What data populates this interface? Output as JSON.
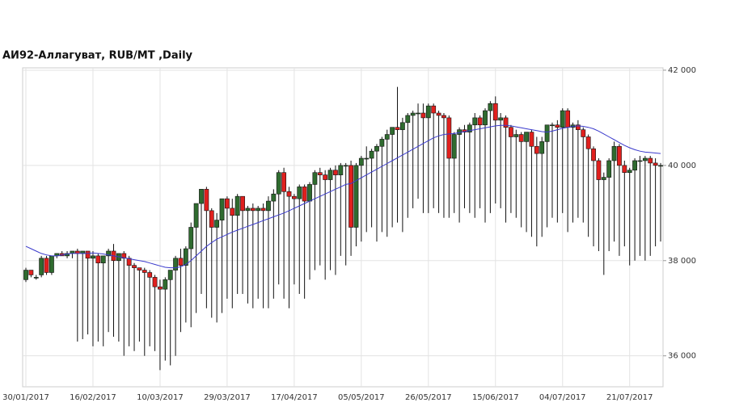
{
  "chart_data": {
    "type": "candlestick",
    "title": "АИ92-Аллагуват,  RUB/MT ,Daily",
    "categories": [
      "30/01/2017",
      null,
      null,
      null,
      null,
      null,
      null,
      null,
      null,
      null,
      null,
      null,
      null,
      "16/02/2017",
      null,
      null,
      null,
      null,
      null,
      null,
      null,
      null,
      null,
      null,
      null,
      null,
      "10/03/2017",
      null,
      null,
      null,
      null,
      null,
      null,
      null,
      null,
      null,
      null,
      null,
      null,
      "29/03/2017",
      null,
      null,
      null,
      null,
      null,
      null,
      null,
      null,
      null,
      null,
      null,
      null,
      "17/04/2017",
      null,
      null,
      null,
      null,
      null,
      null,
      null,
      null,
      null,
      null,
      null,
      null,
      "05/05/2017",
      null,
      null,
      null,
      null,
      null,
      null,
      null,
      null,
      null,
      null,
      null,
      null,
      "26/05/2017",
      null,
      null,
      null,
      null,
      null,
      null,
      null,
      null,
      null,
      null,
      null,
      null,
      "15/06/2017",
      null,
      null,
      null,
      null,
      null,
      null,
      null,
      null,
      null,
      null,
      null,
      null,
      "04/07/2017",
      null,
      null,
      null,
      null,
      null,
      null,
      null,
      null,
      null,
      null,
      null,
      null,
      "21/07/2017",
      null,
      null,
      null,
      null,
      null,
      null
    ],
    "ohlc": [
      [
        37600,
        37850,
        37550,
        37800
      ],
      [
        37800,
        37800,
        37650,
        37700
      ],
      [
        37650,
        37700,
        37600,
        37650
      ],
      [
        37700,
        38100,
        37650,
        38050
      ],
      [
        38050,
        38100,
        37700,
        37750
      ],
      [
        37750,
        38100,
        37700,
        38100
      ],
      [
        38100,
        38150,
        38050,
        38150
      ],
      [
        38150,
        38200,
        38100,
        38100
      ],
      [
        38100,
        38200,
        38050,
        38150
      ],
      [
        38150,
        38200,
        38050,
        38200
      ],
      [
        38200,
        38250,
        36300,
        38150
      ],
      [
        38150,
        38200,
        36350,
        38200
      ],
      [
        38200,
        38200,
        36450,
        38050
      ],
      [
        38050,
        38200,
        36200,
        38100
      ],
      [
        38100,
        38150,
        36300,
        37950
      ],
      [
        37950,
        38100,
        36200,
        38100
      ],
      [
        38100,
        38250,
        36500,
        38200
      ],
      [
        38200,
        38350,
        36400,
        38000
      ],
      [
        38000,
        38150,
        36300,
        38150
      ],
      [
        38150,
        38200,
        36000,
        38050
      ],
      [
        38050,
        38100,
        36200,
        37900
      ],
      [
        37900,
        37950,
        36100,
        37850
      ],
      [
        37850,
        37850,
        36300,
        37800
      ],
      [
        37800,
        37850,
        36000,
        37750
      ],
      [
        37750,
        37800,
        36200,
        37650
      ],
      [
        37650,
        37700,
        36100,
        37450
      ],
      [
        37450,
        37600,
        35700,
        37400
      ],
      [
        37400,
        37650,
        35900,
        37600
      ],
      [
        37600,
        37800,
        35800,
        37800
      ],
      [
        37800,
        38100,
        36000,
        38050
      ],
      [
        38050,
        38250,
        36500,
        37900
      ],
      [
        37900,
        38300,
        36700,
        38250
      ],
      [
        38250,
        38800,
        36600,
        38700
      ],
      [
        38700,
        39200,
        36900,
        39200
      ],
      [
        39200,
        39500,
        37300,
        39500
      ],
      [
        39500,
        39550,
        37000,
        39050
      ],
      [
        39050,
        39100,
        36800,
        38700
      ],
      [
        38700,
        39000,
        36700,
        38850
      ],
      [
        38850,
        39300,
        36900,
        39300
      ],
      [
        39300,
        39350,
        37200,
        39100
      ],
      [
        39100,
        39300,
        37000,
        38950
      ],
      [
        38950,
        39400,
        37300,
        39350
      ],
      [
        39350,
        39350,
        37300,
        39050
      ],
      [
        39050,
        39150,
        37100,
        39100
      ],
      [
        39100,
        39200,
        37000,
        39050
      ],
      [
        39050,
        39150,
        37200,
        39100
      ],
      [
        39100,
        39200,
        37000,
        39050
      ],
      [
        39050,
        39350,
        37000,
        39250
      ],
      [
        39250,
        39500,
        37200,
        39400
      ],
      [
        39400,
        39900,
        37500,
        39850
      ],
      [
        39850,
        39950,
        37200,
        39450
      ],
      [
        39450,
        39550,
        37000,
        39350
      ],
      [
        39350,
        39400,
        37500,
        39300
      ],
      [
        39300,
        39600,
        37300,
        39550
      ],
      [
        39550,
        39600,
        37200,
        39250
      ],
      [
        39250,
        39650,
        37600,
        39600
      ],
      [
        39600,
        39900,
        37800,
        39850
      ],
      [
        39850,
        39950,
        37900,
        39800
      ],
      [
        39800,
        39900,
        37600,
        39700
      ],
      [
        39700,
        39950,
        37800,
        39900
      ],
      [
        39900,
        40000,
        37700,
        39800
      ],
      [
        39800,
        40050,
        38100,
        40000
      ],
      [
        40000,
        40050,
        37900,
        40000
      ],
      [
        40000,
        40100,
        38100,
        38700
      ],
      [
        38700,
        40050,
        38300,
        40000
      ],
      [
        40000,
        40200,
        38400,
        40150
      ],
      [
        40150,
        40400,
        38600,
        40150
      ],
      [
        40150,
        40350,
        38700,
        40300
      ],
      [
        40300,
        40450,
        38400,
        40400
      ],
      [
        40400,
        40600,
        38600,
        40550
      ],
      [
        40550,
        40750,
        38500,
        40650
      ],
      [
        40650,
        40800,
        38700,
        40800
      ],
      [
        40800,
        41650,
        38800,
        40750
      ],
      [
        40750,
        41000,
        38600,
        40900
      ],
      [
        40900,
        41100,
        38900,
        41050
      ],
      [
        41050,
        41150,
        39100,
        41100
      ],
      [
        41100,
        41300,
        39300,
        41100
      ],
      [
        41100,
        41300,
        39000,
        41000
      ],
      [
        41000,
        41300,
        39000,
        41250
      ],
      [
        41250,
        41300,
        39100,
        41100
      ],
      [
        41100,
        41150,
        39000,
        41050
      ],
      [
        41050,
        41100,
        38900,
        41000
      ],
      [
        41000,
        41050,
        38900,
        40150
      ],
      [
        40150,
        40700,
        39000,
        40650
      ],
      [
        40650,
        40800,
        38800,
        40750
      ],
      [
        40750,
        40850,
        39100,
        40700
      ],
      [
        40700,
        40900,
        39000,
        40850
      ],
      [
        40850,
        41100,
        38900,
        41000
      ],
      [
        41000,
        41050,
        39100,
        40850
      ],
      [
        40850,
        41200,
        38800,
        41150
      ],
      [
        41150,
        41350,
        39000,
        41300
      ],
      [
        41300,
        41450,
        39200,
        40950
      ],
      [
        40950,
        41100,
        39100,
        41000
      ],
      [
        41000,
        41050,
        38800,
        40800
      ],
      [
        40800,
        40850,
        39000,
        40600
      ],
      [
        40600,
        40750,
        38900,
        40650
      ],
      [
        40650,
        40700,
        38700,
        40500
      ],
      [
        40500,
        40700,
        38600,
        40700
      ],
      [
        40700,
        40750,
        38500,
        40400
      ],
      [
        40400,
        40600,
        38300,
        40250
      ],
      [
        40250,
        40600,
        38500,
        40500
      ],
      [
        40500,
        40850,
        38700,
        40850
      ],
      [
        40850,
        40900,
        38900,
        40850
      ],
      [
        40850,
        40950,
        38800,
        40800
      ],
      [
        40800,
        41200,
        39000,
        41150
      ],
      [
        41150,
        41200,
        38600,
        40800
      ],
      [
        40800,
        40900,
        38800,
        40850
      ],
      [
        40850,
        40950,
        38900,
        40750
      ],
      [
        40750,
        40800,
        38800,
        40600
      ],
      [
        40600,
        40650,
        38500,
        40350
      ],
      [
        40350,
        40400,
        38300,
        40100
      ],
      [
        40100,
        40150,
        38200,
        39700
      ],
      [
        39700,
        39850,
        37700,
        39750
      ],
      [
        39750,
        40150,
        38200,
        40100
      ],
      [
        40100,
        40500,
        38400,
        40400
      ],
      [
        40400,
        40450,
        38100,
        40000
      ],
      [
        40000,
        40100,
        38300,
        39850
      ],
      [
        39850,
        39950,
        37900,
        39900
      ],
      [
        39900,
        40150,
        38000,
        40100
      ],
      [
        40100,
        40200,
        38100,
        40100
      ],
      [
        40100,
        40200,
        38000,
        40150
      ],
      [
        40150,
        40200,
        38100,
        40050
      ],
      [
        40050,
        40150,
        38300,
        40000
      ],
      [
        40000,
        40050,
        38400,
        40000
      ]
    ],
    "moving_average": {
      "color": "#3a3acc",
      "values": [
        38300,
        38250,
        38200,
        38150,
        38120,
        38100,
        38100,
        38120,
        38140,
        38150,
        38150,
        38150,
        38150,
        38160,
        38150,
        38140,
        38120,
        38100,
        38080,
        38060,
        38040,
        38020,
        38000,
        37980,
        37950,
        37920,
        37890,
        37860,
        37850,
        37850,
        37870,
        37920,
        38000,
        38100,
        38200,
        38300,
        38380,
        38450,
        38500,
        38550,
        38600,
        38640,
        38680,
        38720,
        38760,
        38800,
        38840,
        38880,
        38920,
        38960,
        39000,
        39050,
        39100,
        39150,
        39200,
        39250,
        39300,
        39350,
        39400,
        39450,
        39500,
        39550,
        39600,
        39620,
        39680,
        39740,
        39800,
        39860,
        39920,
        39980,
        40040,
        40100,
        40160,
        40220,
        40280,
        40340,
        40400,
        40460,
        40520,
        40580,
        40620,
        40650,
        40660,
        40670,
        40690,
        40710,
        40730,
        40750,
        40770,
        40790,
        40810,
        40830,
        40840,
        40840,
        40830,
        40810,
        40790,
        40770,
        40750,
        40730,
        40710,
        40700,
        40720,
        40750,
        40780,
        40800,
        40820,
        40830,
        40820,
        40800,
        40770,
        40720,
        40660,
        40600,
        40540,
        40480,
        40420,
        40370,
        40330,
        40300,
        40280,
        40270,
        40260,
        40250
      ]
    },
    "up_color": "#2f6b2f",
    "down_color": "#e0201e",
    "ylim": [
      35350,
      42050
    ],
    "yticks": [
      {
        "value": 36000,
        "label": "36 000"
      },
      {
        "value": 38000,
        "label": "38 000"
      },
      {
        "value": 40000,
        "label": "40 000"
      },
      {
        "value": 42000,
        "label": "42 000"
      }
    ],
    "grid": true
  }
}
